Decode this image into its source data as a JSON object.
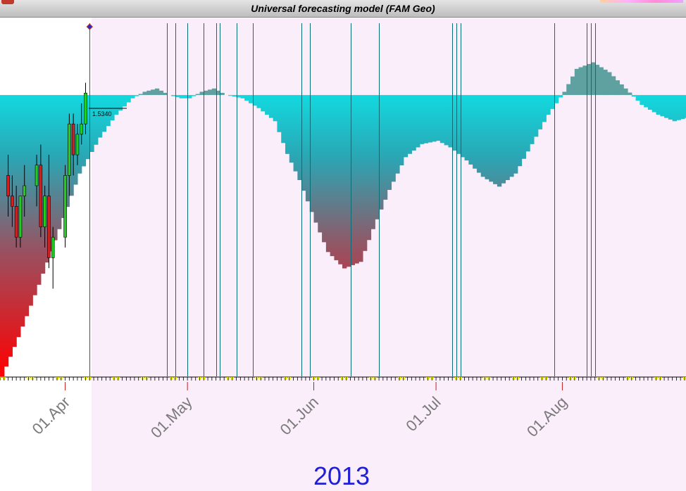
{
  "window": {
    "title": "Universal forecasting model (FAM Geo)"
  },
  "colors": {
    "future_background": "#fbeefb",
    "forecast_top": "#00ffff",
    "forecast_bottom": "#ff0000",
    "cycle_line": "#0a6e78",
    "candle_up": "#22cc22",
    "candle_down": "#cc2222",
    "year_text": "#1f1fd6",
    "marker": "#ffff00"
  },
  "chart_data": {
    "type": "bar",
    "title": "Universal forecasting model (FAM Geo)",
    "x_start": "2013-03-16",
    "x_end": "2013-08-31",
    "date_labels": [
      "01.Apr",
      "01.May",
      "01.Jun",
      "01.Jul",
      "01.Aug"
    ],
    "year": "2013",
    "price_label": "1.5340",
    "current_date": "2013-04-07",
    "forecast_baseline_level": 0.86,
    "forecast": {
      "dates": [
        "2013-03-16",
        "2013-03-20",
        "2013-03-25",
        "2013-03-30",
        "2013-04-04",
        "2013-04-09",
        "2013-04-13",
        "2013-04-17",
        "2013-04-20",
        "2013-04-23",
        "2013-04-26",
        "2013-04-29",
        "2013-05-01",
        "2013-05-04",
        "2013-05-07",
        "2013-05-10",
        "2013-05-14",
        "2013-05-18",
        "2013-05-22",
        "2013-05-25",
        "2013-05-28",
        "2013-06-01",
        "2013-06-04",
        "2013-06-08",
        "2013-06-12",
        "2013-06-15",
        "2013-06-19",
        "2013-06-23",
        "2013-06-27",
        "2013-07-01",
        "2013-07-04",
        "2013-07-08",
        "2013-07-12",
        "2013-07-16",
        "2013-07-20",
        "2013-07-24",
        "2013-07-28",
        "2013-08-01",
        "2013-08-04",
        "2013-08-08",
        "2013-08-12",
        "2013-08-16",
        "2013-08-20",
        "2013-08-24",
        "2013-08-28",
        "2013-08-31"
      ],
      "values": [
        0.0,
        0.12,
        0.28,
        0.45,
        0.62,
        0.73,
        0.8,
        0.85,
        0.87,
        0.88,
        0.86,
        0.85,
        0.85,
        0.87,
        0.88,
        0.86,
        0.85,
        0.82,
        0.78,
        0.68,
        0.6,
        0.47,
        0.38,
        0.33,
        0.35,
        0.45,
        0.57,
        0.67,
        0.71,
        0.72,
        0.7,
        0.66,
        0.61,
        0.58,
        0.62,
        0.71,
        0.8,
        0.87,
        0.94,
        0.96,
        0.93,
        0.88,
        0.83,
        0.8,
        0.78,
        0.79
      ]
    },
    "cycle_dates": [
      "2013-04-07",
      "2013-04-26",
      "2013-04-28",
      "2013-05-01",
      "2013-05-05",
      "2013-05-08",
      "2013-05-09",
      "2013-05-13",
      "2013-05-17",
      "2013-05-29",
      "2013-05-31",
      "2013-06-10",
      "2013-06-17",
      "2013-06-17",
      "2013-07-05",
      "2013-07-06",
      "2013-07-07",
      "2013-07-30",
      "2013-08-07",
      "2013-08-08",
      "2013-08-09"
    ],
    "candles": [
      {
        "date": "2013-03-18",
        "o": 1.527,
        "h": 1.529,
        "l": 1.523,
        "c": 1.525
      },
      {
        "date": "2013-03-19",
        "o": 1.525,
        "h": 1.527,
        "l": 1.522,
        "c": 1.524
      },
      {
        "date": "2013-03-20",
        "o": 1.524,
        "h": 1.526,
        "l": 1.52,
        "c": 1.521
      },
      {
        "date": "2013-03-21",
        "o": 1.521,
        "h": 1.525,
        "l": 1.52,
        "c": 1.525
      },
      {
        "date": "2013-03-22",
        "o": 1.525,
        "h": 1.528,
        "l": 1.523,
        "c": 1.526
      },
      {
        "date": "2013-03-25",
        "o": 1.526,
        "h": 1.529,
        "l": 1.524,
        "c": 1.528
      },
      {
        "date": "2013-03-26",
        "o": 1.528,
        "h": 1.53,
        "l": 1.521,
        "c": 1.522
      },
      {
        "date": "2013-03-27",
        "o": 1.522,
        "h": 1.526,
        "l": 1.52,
        "c": 1.525
      },
      {
        "date": "2013-03-28",
        "o": 1.525,
        "h": 1.529,
        "l": 1.518,
        "c": 1.519
      },
      {
        "date": "2013-03-29",
        "o": 1.519,
        "h": 1.522,
        "l": 1.516,
        "c": 1.521
      },
      {
        "date": "2013-04-01",
        "o": 1.521,
        "h": 1.528,
        "l": 1.52,
        "c": 1.527
      },
      {
        "date": "2013-04-02",
        "o": 1.527,
        "h": 1.533,
        "l": 1.525,
        "c": 1.532
      },
      {
        "date": "2013-04-03",
        "o": 1.532,
        "h": 1.533,
        "l": 1.527,
        "c": 1.529
      },
      {
        "date": "2013-04-04",
        "o": 1.529,
        "h": 1.532,
        "l": 1.528,
        "c": 1.531
      },
      {
        "date": "2013-04-05",
        "o": 1.531,
        "h": 1.534,
        "l": 1.53,
        "c": 1.532
      },
      {
        "date": "2013-04-06",
        "o": 1.532,
        "h": 1.536,
        "l": 1.531,
        "c": 1.535
      }
    ]
  }
}
